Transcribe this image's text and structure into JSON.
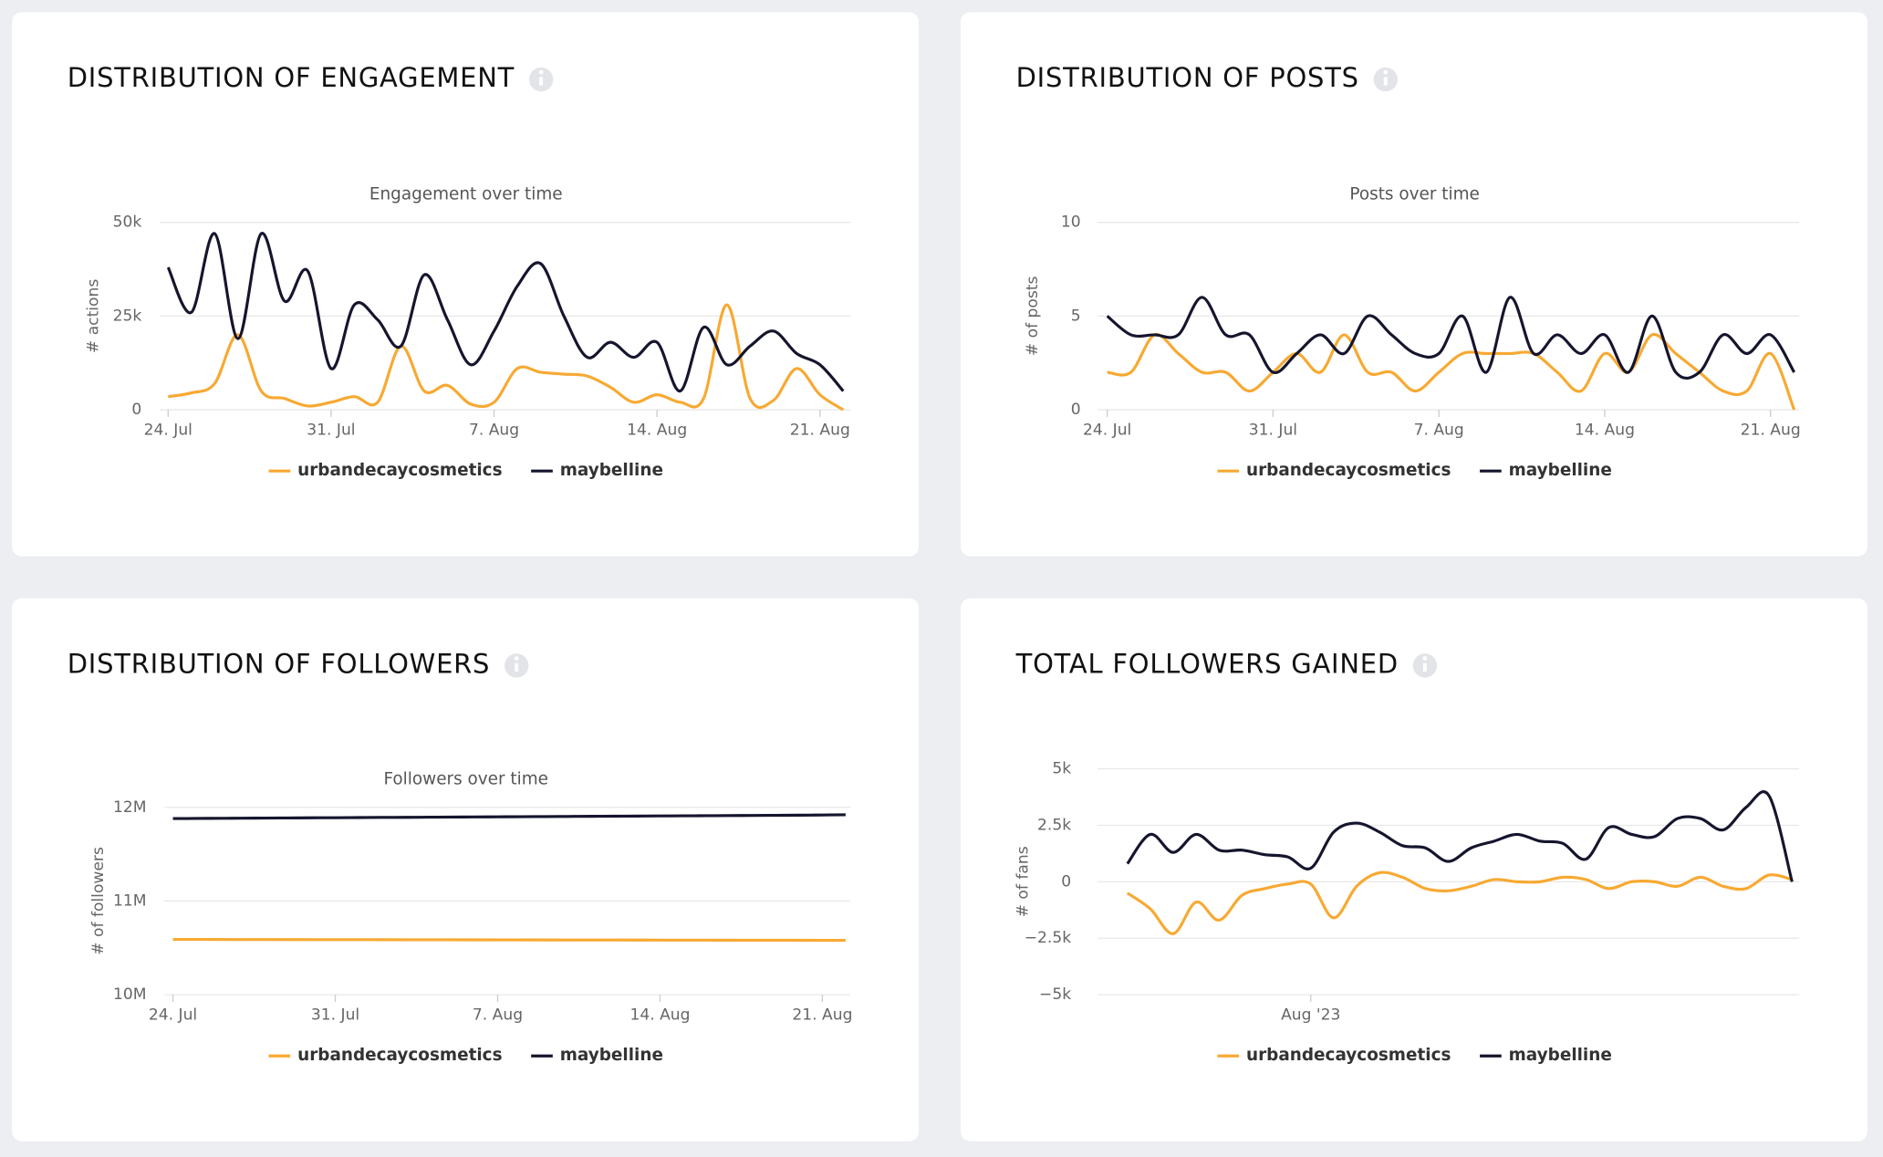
{
  "chart_data": [
    {
      "type": "line",
      "title": "DISTRIBUTION OF ENGAGEMENT",
      "subtitle": "Engagement over time",
      "ylabel": "# actions",
      "x": [
        0,
        1,
        2,
        3,
        4,
        5,
        6,
        7,
        8,
        9,
        10,
        11,
        12,
        13,
        14,
        15,
        16,
        17,
        18,
        19,
        20,
        21,
        22,
        23,
        24,
        25,
        26,
        27,
        28,
        29
      ],
      "xlim": [
        0,
        29.3
      ],
      "xticks": [
        {
          "value": 0,
          "label": "24. Jul"
        },
        {
          "value": 7,
          "label": "31. Jul"
        },
        {
          "value": 14,
          "label": "7. Aug"
        },
        {
          "value": 21,
          "label": "14. Aug"
        },
        {
          "value": 28,
          "label": "21. Aug"
        }
      ],
      "ylim": [
        0,
        50000
      ],
      "yticks": [
        0,
        {
          "value": 25000,
          "label": "25k"
        },
        {
          "value": 50000,
          "label": "50k"
        }
      ],
      "grid": true,
      "series": [
        {
          "name": "urbandecaycosmetics",
          "color": "#f7a932",
          "values": [
            3500,
            4500,
            7000,
            20000,
            5000,
            3000,
            1000,
            2000,
            3500,
            2000,
            17000,
            5000,
            6500,
            1500,
            2000,
            11000,
            10000,
            9500,
            9000,
            6000,
            2000,
            4000,
            2000,
            3000,
            28000,
            3000,
            2500,
            11000,
            4000,
            0
          ]
        },
        {
          "name": "maybelline",
          "color": "#15152e",
          "values": [
            38000,
            26000,
            47000,
            19000,
            47000,
            29000,
            37000,
            11000,
            28000,
            24000,
            17000,
            36000,
            24000,
            12000,
            21000,
            33000,
            39000,
            25000,
            14000,
            18000,
            14000,
            18000,
            5000,
            22000,
            12000,
            17000,
            21000,
            15000,
            12000,
            5000
          ]
        }
      ]
    },
    {
      "type": "line",
      "title": "DISTRIBUTION OF POSTS",
      "subtitle": "Posts over time",
      "ylabel": "# of posts",
      "x": [
        0,
        1,
        2,
        3,
        4,
        5,
        6,
        7,
        8,
        9,
        10,
        11,
        12,
        13,
        14,
        15,
        16,
        17,
        18,
        19,
        20,
        21,
        22,
        23,
        24,
        25,
        26,
        27,
        28,
        29
      ],
      "xlim": [
        0,
        29.2
      ],
      "xticks": [
        {
          "value": 0,
          "label": "24. Jul"
        },
        {
          "value": 7,
          "label": "31. Jul"
        },
        {
          "value": 14,
          "label": "7. Aug"
        },
        {
          "value": 21,
          "label": "14. Aug"
        },
        {
          "value": 28,
          "label": "21. Aug"
        }
      ],
      "ylim": [
        0,
        10
      ],
      "yticks": [
        0,
        5,
        10
      ],
      "grid": true,
      "series": [
        {
          "name": "urbandecaycosmetics",
          "color": "#f7a932",
          "values": [
            2,
            2,
            4,
            3,
            2,
            2,
            1,
            2,
            3,
            2,
            4,
            2,
            2,
            1,
            2,
            3,
            3,
            3,
            3,
            2,
            1,
            3,
            2,
            4,
            3,
            2,
            1,
            1,
            3,
            0
          ]
        },
        {
          "name": "maybelline",
          "color": "#15152e",
          "values": [
            5,
            4,
            4,
            4,
            6,
            4,
            4,
            2,
            3,
            4,
            3,
            5,
            4,
            3,
            3,
            5,
            2,
            6,
            3,
            4,
            3,
            4,
            2,
            5,
            2,
            2,
            4,
            3,
            4,
            2
          ]
        }
      ]
    },
    {
      "type": "line",
      "title": "DISTRIBUTION OF FOLLOWERS",
      "subtitle": "Followers over time",
      "ylabel": "# of followers",
      "x": [
        0,
        1,
        2,
        3,
        4,
        5,
        6,
        7,
        8,
        9,
        10,
        11,
        12,
        13,
        14,
        15,
        16,
        17,
        18,
        19,
        20,
        21,
        22,
        23,
        24,
        25,
        26,
        27,
        28,
        29
      ],
      "xlim": [
        0,
        29.2
      ],
      "xticks": [
        {
          "value": 0,
          "label": "24. Jul"
        },
        {
          "value": 7,
          "label": "31. Jul"
        },
        {
          "value": 14,
          "label": "7. Aug"
        },
        {
          "value": 21,
          "label": "14. Aug"
        },
        {
          "value": 28,
          "label": "21. Aug"
        }
      ],
      "ylim": [
        10000000,
        12000000
      ],
      "yticks": [
        {
          "value": 10000000,
          "label": "10M"
        },
        {
          "value": 11000000,
          "label": "11M"
        },
        {
          "value": 12000000,
          "label": "12M"
        }
      ],
      "grid": true,
      "series": [
        {
          "name": "urbandecaycosmetics",
          "color": "#f7a932",
          "values": [
            10590000,
            10589500,
            10589000,
            10588700,
            10588300,
            10588000,
            10587600,
            10587300,
            10587000,
            10586600,
            10586300,
            10586000,
            10585600,
            10585300,
            10585000,
            10584700,
            10584300,
            10584000,
            10583700,
            10583300,
            10583000,
            10582700,
            10582300,
            10582000,
            10581700,
            10581300,
            10581000,
            10580700,
            10580300,
            10580000
          ]
        },
        {
          "name": "maybelline",
          "color": "#15152e",
          "values": [
            11880000,
            11881000,
            11882500,
            11884000,
            11885000,
            11886500,
            11888000,
            11889000,
            11890500,
            11892000,
            11893000,
            11894500,
            11896000,
            11897000,
            11898500,
            11900000,
            11901000,
            11902500,
            11904000,
            11905000,
            11906500,
            11908000,
            11909000,
            11910500,
            11912000,
            11913000,
            11914500,
            11916000,
            11918000,
            11920000
          ]
        }
      ]
    },
    {
      "type": "line",
      "title": "TOTAL FOLLOWERS GAINED",
      "ylabel": "# of fans",
      "x": [
        0,
        1,
        2,
        3,
        4,
        5,
        6,
        7,
        8,
        9,
        10,
        11,
        12,
        13,
        14,
        15,
        16,
        17,
        18,
        19,
        20,
        21,
        22,
        23,
        24,
        25,
        26,
        27,
        28,
        29
      ],
      "xlim": [
        -1.3,
        29.3
      ],
      "xticks": [
        {
          "value": 8,
          "label": "Aug '23"
        }
      ],
      "ylim": [
        -5000,
        5000
      ],
      "yticks": [
        {
          "value": -5000,
          "label": "−5k"
        },
        {
          "value": -2500,
          "label": "−2.5k"
        },
        0,
        {
          "value": 2500,
          "label": "2.5k"
        },
        {
          "value": 5000,
          "label": "5k"
        }
      ],
      "grid": true,
      "series": [
        {
          "name": "urbandecaycosmetics",
          "color": "#f7a932",
          "values": [
            -500,
            -1200,
            -2300,
            -900,
            -1700,
            -600,
            -300,
            -100,
            -100,
            -1600,
            -200,
            400,
            200,
            -300,
            -400,
            -200,
            100,
            0,
            0,
            200,
            100,
            -300,
            0,
            0,
            -200,
            200,
            -200,
            -300,
            300,
            100
          ]
        },
        {
          "name": "maybelline",
          "color": "#15152e",
          "values": [
            800,
            2100,
            1300,
            2100,
            1400,
            1400,
            1200,
            1100,
            600,
            2200,
            2600,
            2200,
            1600,
            1500,
            900,
            1500,
            1800,
            2100,
            1800,
            1700,
            1000,
            2400,
            2100,
            2000,
            2800,
            2800,
            2300,
            3300,
            3800,
            0
          ]
        }
      ]
    }
  ]
}
